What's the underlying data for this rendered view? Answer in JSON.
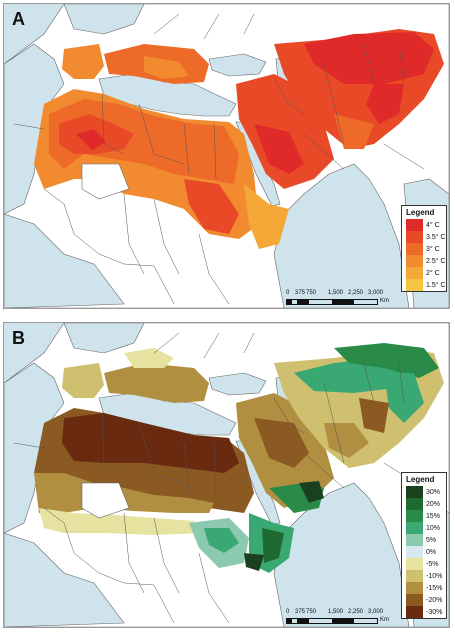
{
  "panels": [
    {
      "label": "A",
      "legend": {
        "title": "Legend",
        "items": [
          {
            "label": "4° C",
            "color": "#e02a2a"
          },
          {
            "label": "3.5° C",
            "color": "#e84a28"
          },
          {
            "label": "3° C",
            "color": "#ee6a28"
          },
          {
            "label": "2.5° C",
            "color": "#f28a30"
          },
          {
            "label": "2° C",
            "color": "#f4a838"
          },
          {
            "label": "1.5° C",
            "color": "#f2c640"
          }
        ]
      },
      "scale": {
        "ticks": [
          "0",
          "375",
          "750",
          "1,500",
          "2,250",
          "3,000"
        ],
        "unit": "Km"
      }
    },
    {
      "label": "B",
      "legend": {
        "title": "Legend",
        "items": [
          {
            "label": "30%",
            "color": "#1a4020"
          },
          {
            "label": "20%",
            "color": "#1f6a30"
          },
          {
            "label": "15%",
            "color": "#2a8a48"
          },
          {
            "label": "10%",
            "color": "#3aa872"
          },
          {
            "label": "5%",
            "color": "#8ccab0"
          },
          {
            "label": "0%",
            "color": "#d8e8f0"
          },
          {
            "label": "-5%",
            "color": "#e6e2a0"
          },
          {
            "label": "-10%",
            "color": "#cfc070"
          },
          {
            "label": "-15%",
            "color": "#b09040"
          },
          {
            "label": "-20%",
            "color": "#8a5a22"
          },
          {
            "label": "-30%",
            "color": "#6a2a10"
          }
        ]
      },
      "scale": {
        "ticks": [
          "0",
          "375",
          "750",
          "1,500",
          "2,250",
          "3,000"
        ],
        "unit": "Km"
      }
    }
  ],
  "colors": {
    "sea": "#cfe3ec",
    "land": "#ffffff",
    "border": "#555555"
  }
}
